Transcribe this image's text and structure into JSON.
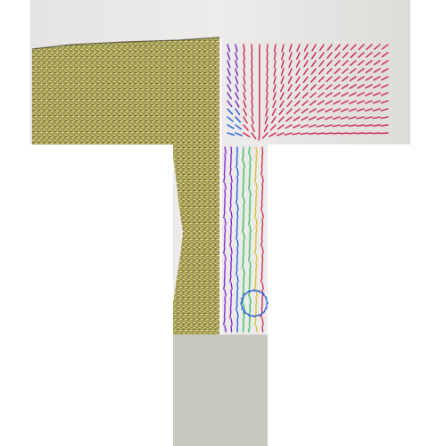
{
  "scene": {
    "colors": {
      "background": "#ffffff",
      "container_top_light": "#ecebea",
      "container_top_dark": "#dcdad7",
      "stem_wall": "#ecebea",
      "stem_base": "#c9c8c0",
      "granular_fill": "#9a9450",
      "granular_grain": "#e6dc88",
      "granular_dark": "#3a3a22",
      "vector_field_flow": "#d0254a",
      "vector_field_violet": "#7a1fc7",
      "vector_field_blue": "#2255dd",
      "vector_field_green": "#2bbb55",
      "vector_field_yellow": "#d6c22a"
    },
    "panels": [
      {
        "name": "particle-view",
        "depicts": "granular-material-icon"
      },
      {
        "name": "velocity-field-view",
        "depicts": "arrow-field-icon"
      }
    ]
  }
}
